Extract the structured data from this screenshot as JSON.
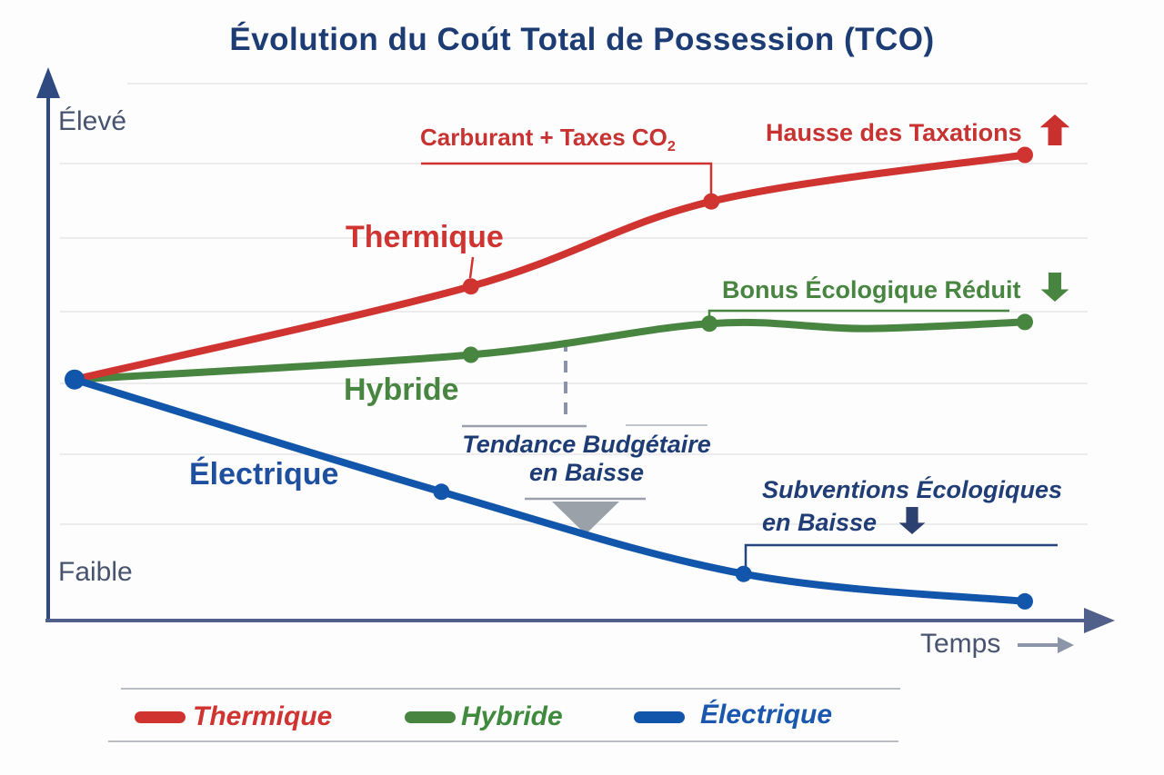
{
  "title": "Évolution du Coút Total de Possession (TCO)",
  "axis": {
    "y_high": "Élevé",
    "y_low": "Faible",
    "x": "Temps"
  },
  "series_labels": {
    "thermique": "Thermique",
    "hybride": "Hybride",
    "electrique": "Électrique"
  },
  "annotations": {
    "carburant": {
      "text": "Carburant + Taxes CO",
      "sub": "2"
    },
    "hausse": {
      "text": "Hausse des Taxations",
      "icon": "up-arrow"
    },
    "bonus": {
      "text": "Bonus Écologique Réduit",
      "icon": "down-arrow"
    },
    "tendance": {
      "line1": "Tendance Budgétaire",
      "line2": "en Baisse",
      "icon": "triangle-down"
    },
    "subventions": {
      "line1": "Subventions Écologiques",
      "line2": "en Baisse",
      "icon": "down-arrow"
    }
  },
  "legend": {
    "items": [
      {
        "label": "Thermique",
        "color": "#cf3431"
      },
      {
        "label": "Hybride",
        "color": "#478540"
      },
      {
        "label": "Électrique",
        "color": "#1256ab"
      }
    ]
  },
  "colors": {
    "thermique": "#cf3431",
    "hybride": "#478540",
    "electrique": "#1256ab",
    "navy_text": "#1d3c74",
    "slate_text": "#47536f",
    "grid": "#ececee",
    "axis": "#3a4f80",
    "dashed_guide": "#8b93a8",
    "trend_triangle": "#9ba1a9"
  },
  "chart_data": {
    "type": "line",
    "title": "Évolution du Coút Total de Possession (TCO)",
    "xlabel": "Temps",
    "ylabel": "",
    "x_axis": {
      "type": "qualitative",
      "range": [
        0,
        1
      ]
    },
    "y_axis": {
      "type": "qualitative",
      "low_label": "Faible",
      "high_label": "Élevé",
      "range": [
        0,
        10
      ]
    },
    "grid": "horizontal-only",
    "legend_position": "bottom",
    "series": [
      {
        "key": "thermique",
        "name": "Thermique",
        "color": "#cf3431",
        "z": 2,
        "x": [
          0,
          0.417,
          0.67,
          1.0
        ],
        "y": [
          4.4,
          6.1,
          7.65,
          8.5
        ],
        "dots": [
          1,
          2,
          3
        ],
        "trend": "rising",
        "annotations": [
          "Carburant + Taxes CO2",
          "Hausse des Taxations"
        ]
      },
      {
        "key": "hybride",
        "name": "Hybride",
        "color": "#478540",
        "z": 1,
        "x": [
          0,
          0.417,
          0.668,
          0.83,
          1.0
        ],
        "y": [
          4.4,
          4.85,
          5.42,
          5.33,
          5.45
        ],
        "dots": [
          1,
          2,
          4
        ],
        "trend": "slightly-rising",
        "annotations": [
          "Bonus Écologique Réduit"
        ]
      },
      {
        "key": "electrique",
        "name": "Électrique",
        "color": "#1256ab",
        "z": 3,
        "x": [
          0,
          0.386,
          0.704,
          1.0
        ],
        "y": [
          4.4,
          2.35,
          0.85,
          0.35
        ],
        "dots": [
          0,
          1,
          2,
          3
        ],
        "trend": "falling",
        "annotations": [
          "Tendance Budgétaire en Baisse",
          "Subventions Écologiques en Baisse"
        ]
      }
    ]
  }
}
